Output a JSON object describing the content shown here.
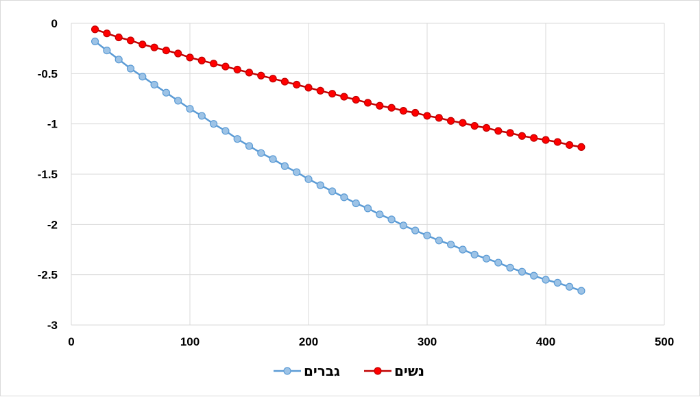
{
  "chart_data": {
    "type": "line",
    "title": "",
    "xlabel": "",
    "ylabel": "",
    "xlim": [
      0,
      500
    ],
    "ylim": [
      -3,
      0
    ],
    "x_ticks": [
      "0",
      "100",
      "200",
      "300",
      "400",
      "500"
    ],
    "y_ticks": [
      "0",
      "-0.5",
      "-1",
      "-1.5",
      "-2",
      "-2.5",
      "-3"
    ],
    "grid": true,
    "legend_position": "bottom",
    "x": [
      20,
      30,
      40,
      50,
      60,
      70,
      80,
      90,
      100,
      110,
      120,
      130,
      140,
      150,
      160,
      170,
      180,
      190,
      200,
      210,
      220,
      230,
      240,
      250,
      260,
      270,
      280,
      290,
      300,
      310,
      320,
      330,
      340,
      350,
      360,
      370,
      380,
      390,
      400,
      410,
      420,
      430
    ],
    "series": [
      {
        "name": "גברים",
        "color": "#5b9bd5",
        "marker_fill": "#9dc3e6",
        "values": [
          -0.18,
          -0.27,
          -0.36,
          -0.45,
          -0.53,
          -0.61,
          -0.69,
          -0.77,
          -0.85,
          -0.92,
          -1.0,
          -1.07,
          -1.15,
          -1.22,
          -1.29,
          -1.35,
          -1.42,
          -1.48,
          -1.55,
          -1.61,
          -1.67,
          -1.73,
          -1.79,
          -1.84,
          -1.9,
          -1.95,
          -2.01,
          -2.06,
          -2.11,
          -2.16,
          -2.2,
          -2.25,
          -2.3,
          -2.34,
          -2.38,
          -2.43,
          -2.47,
          -2.51,
          -2.55,
          -2.58,
          -2.62,
          -2.66
        ]
      },
      {
        "name": "נשים",
        "color": "#c00000",
        "marker_fill": "#ff0000",
        "values": [
          -0.06,
          -0.1,
          -0.14,
          -0.17,
          -0.21,
          -0.24,
          -0.27,
          -0.3,
          -0.34,
          -0.37,
          -0.4,
          -0.43,
          -0.46,
          -0.49,
          -0.52,
          -0.55,
          -0.58,
          -0.61,
          -0.64,
          -0.67,
          -0.7,
          -0.73,
          -0.76,
          -0.79,
          -0.82,
          -0.84,
          -0.87,
          -0.89,
          -0.92,
          -0.94,
          -0.97,
          -0.99,
          -1.02,
          -1.04,
          -1.07,
          -1.09,
          -1.12,
          -1.14,
          -1.16,
          -1.18,
          -1.21,
          -1.23
        ]
      }
    ]
  }
}
